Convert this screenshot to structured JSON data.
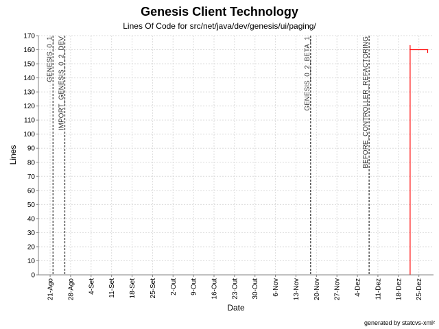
{
  "chart_data": {
    "type": "line",
    "title": "Genesis Client Technology",
    "subtitle": "Lines Of Code for src/net/java/dev/genesis/ui/paging/",
    "xlabel": "Date",
    "ylabel": "Lines",
    "footer": "generated by statcvs-xml²",
    "x_ticks": [
      {
        "date": "2004-08-21",
        "label": "21-Ago"
      },
      {
        "date": "2004-08-28",
        "label": "28-Ago"
      },
      {
        "date": "2004-09-04",
        "label": "4-Set"
      },
      {
        "date": "2004-09-11",
        "label": "11-Set"
      },
      {
        "date": "2004-09-18",
        "label": "18-Set"
      },
      {
        "date": "2004-09-25",
        "label": "25-Set"
      },
      {
        "date": "2004-10-02",
        "label": "2-Out"
      },
      {
        "date": "2004-10-09",
        "label": "9-Out"
      },
      {
        "date": "2004-10-16",
        "label": "16-Out"
      },
      {
        "date": "2004-10-23",
        "label": "23-Out"
      },
      {
        "date": "2004-10-30",
        "label": "30-Out"
      },
      {
        "date": "2004-11-06",
        "label": "6-Nov"
      },
      {
        "date": "2004-11-13",
        "label": "13-Nov"
      },
      {
        "date": "2004-11-20",
        "label": "20-Nov"
      },
      {
        "date": "2004-11-27",
        "label": "27-Nov"
      },
      {
        "date": "2004-12-04",
        "label": "4-Dez"
      },
      {
        "date": "2004-12-11",
        "label": "11-Dez"
      },
      {
        "date": "2004-12-18",
        "label": "18-Dez"
      },
      {
        "date": "2004-12-25",
        "label": "25-Dez"
      }
    ],
    "xlim": [
      "2004-08-17",
      "2004-12-30"
    ],
    "ylim": [
      0,
      170
    ],
    "y_ticks": [
      0,
      10,
      20,
      30,
      40,
      50,
      60,
      70,
      80,
      90,
      100,
      110,
      120,
      130,
      140,
      150,
      160,
      170
    ],
    "grid": true,
    "series": [
      {
        "color": "#ff0000",
        "points": [
          {
            "date": "2004-12-22",
            "value": 0
          },
          {
            "date": "2004-12-22",
            "value": 163
          },
          {
            "date": "2004-12-22",
            "value": 160
          },
          {
            "date": "2004-12-28",
            "value": 160
          },
          {
            "date": "2004-12-28",
            "value": 158
          }
        ]
      }
    ],
    "markers": [
      {
        "date": "2004-08-22",
        "label": "GENESIS_0_1"
      },
      {
        "date": "2004-08-26",
        "label": "IMPORT_GENESIS_0_2_DEV"
      },
      {
        "date": "2004-11-18",
        "label": "GENESIS_0_2_BETA_1"
      },
      {
        "date": "2004-12-08",
        "label": "BEFORE_CONTROLLER_REFACTORING"
      }
    ]
  }
}
